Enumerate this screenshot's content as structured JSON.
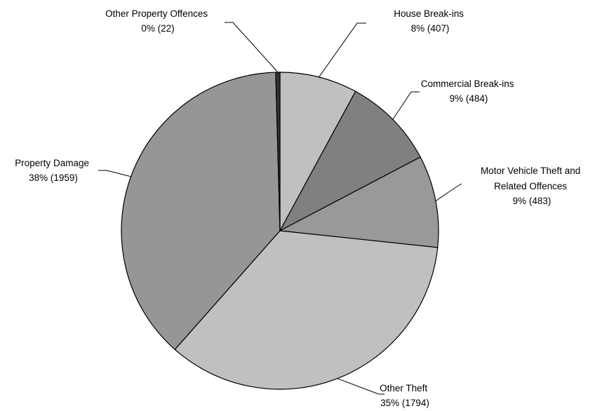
{
  "chart_data": {
    "type": "pie",
    "slices": [
      {
        "name": "House Break-ins",
        "value": 407,
        "label_line1": "House Break-ins",
        "label_line2": "8% (407)",
        "color": "#c0c0c0"
      },
      {
        "name": "Commercial Break-ins",
        "value": 484,
        "label_line1": "Commercial Break-ins",
        "label_line2": "9% (484)",
        "color": "#808080"
      },
      {
        "name": "Motor Vehicle Theft and Related Offences",
        "value": 483,
        "label_line1": "Motor Vehicle Theft and",
        "label_line2": "Related Offences",
        "label_line3": "9% (483)",
        "color": "#999999"
      },
      {
        "name": "Other Theft",
        "value": 1794,
        "label_line1": "Other Theft",
        "label_line2": "35% (1794)",
        "color": "#c0c0c0"
      },
      {
        "name": "Property Damage",
        "value": 1959,
        "label_line1": "Property Damage",
        "label_line2": "38% (1959)",
        "color": "#969696"
      },
      {
        "name": "Other Property Offences",
        "value": 22,
        "label_line1": "Other Property Offences",
        "label_line2": "0% (22)",
        "color": "#333333"
      }
    ],
    "start": "12 o'clock",
    "direction": "clockwise",
    "legend": "none"
  }
}
